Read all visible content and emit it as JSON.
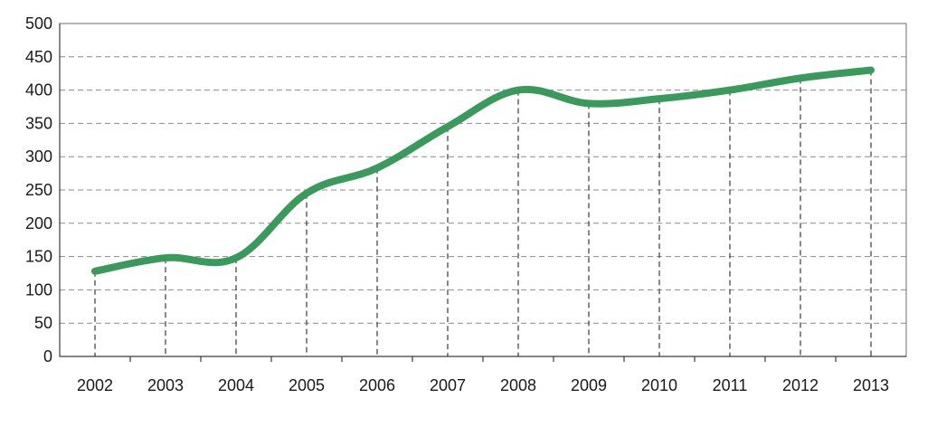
{
  "chart_data": {
    "type": "line",
    "title": "",
    "xlabel": "",
    "ylabel": "",
    "categories": [
      "2002",
      "2003",
      "2004",
      "2005",
      "2006",
      "2007",
      "2008",
      "2009",
      "2010",
      "2011",
      "2012",
      "2013"
    ],
    "series": [
      {
        "values": [
          128,
          148,
          148,
          245,
          283,
          345,
          400,
          380,
          387,
          400,
          418,
          430
        ]
      }
    ],
    "ylim": [
      0,
      500
    ],
    "yticks": [
      0,
      50,
      100,
      150,
      200,
      250,
      300,
      350,
      400,
      450,
      500
    ],
    "grid": "horizontal-dashed",
    "drop_lines": true,
    "legend": "none",
    "colors": {
      "series": "#3a9a5b",
      "grid": "#8c8c8c",
      "axis": "#3a3a3a"
    }
  }
}
